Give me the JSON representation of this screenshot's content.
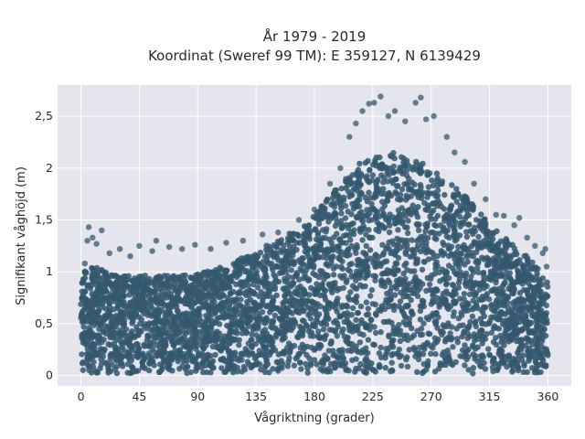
{
  "chart_data": {
    "type": "scatter",
    "title_lines": [
      "År 1979 - 2019",
      "Koordinat (Sweref 99 TM): E 359127, N 6139429"
    ],
    "xlabel": "Vågriktning (grader)",
    "ylabel": "Signifikant våghöjd (m)",
    "xlim": [
      -18,
      378
    ],
    "ylim": [
      -0.1,
      2.8
    ],
    "xticks": [
      0,
      45,
      90,
      135,
      180,
      225,
      270,
      315,
      360
    ],
    "xtick_labels": [
      "0",
      "45",
      "90",
      "135",
      "180",
      "225",
      "270",
      "315",
      "360"
    ],
    "yticks": [
      0,
      0.5,
      1,
      1.5,
      2,
      2.5
    ],
    "ytick_labels": [
      "0",
      "0,5",
      "1",
      "1,5",
      "2",
      "2,5"
    ],
    "grid": true,
    "colors": {
      "marker": "#34586f",
      "plot_bg": "#e5e5ee",
      "grid": "#ffffff"
    },
    "envelope": {
      "direction": [
        0,
        10,
        20,
        30,
        45,
        60,
        90,
        110,
        135,
        150,
        165,
        180,
        200,
        215,
        225,
        240,
        255,
        270,
        285,
        300,
        315,
        330,
        345,
        360
      ],
      "max_height": [
        1.05,
        1.05,
        1.0,
        0.98,
        0.97,
        0.96,
        0.98,
        1.05,
        1.2,
        1.3,
        1.4,
        1.55,
        1.85,
        2.05,
        2.1,
        2.15,
        2.1,
        2.0,
        1.85,
        1.7,
        1.45,
        1.3,
        1.15,
        0.9
      ]
    },
    "outliers": [
      {
        "x": 3,
        "y": 1.08
      },
      {
        "x": 5,
        "y": 1.3
      },
      {
        "x": 6,
        "y": 1.43
      },
      {
        "x": 9,
        "y": 1.33
      },
      {
        "x": 12,
        "y": 1.27
      },
      {
        "x": 16,
        "y": 1.4
      },
      {
        "x": 22,
        "y": 1.18
      },
      {
        "x": 30,
        "y": 1.22
      },
      {
        "x": 38,
        "y": 1.15
      },
      {
        "x": 45,
        "y": 1.25
      },
      {
        "x": 55,
        "y": 1.2
      },
      {
        "x": 58,
        "y": 1.3
      },
      {
        "x": 68,
        "y": 1.24
      },
      {
        "x": 78,
        "y": 1.22
      },
      {
        "x": 88,
        "y": 1.26
      },
      {
        "x": 100,
        "y": 1.22
      },
      {
        "x": 112,
        "y": 1.28
      },
      {
        "x": 125,
        "y": 1.3
      },
      {
        "x": 140,
        "y": 1.36
      },
      {
        "x": 152,
        "y": 1.38
      },
      {
        "x": 168,
        "y": 1.5
      },
      {
        "x": 180,
        "y": 1.6
      },
      {
        "x": 192,
        "y": 1.85
      },
      {
        "x": 200,
        "y": 2.0
      },
      {
        "x": 207,
        "y": 2.3
      },
      {
        "x": 212,
        "y": 2.43
      },
      {
        "x": 217,
        "y": 2.55
      },
      {
        "x": 222,
        "y": 2.62
      },
      {
        "x": 226,
        "y": 2.63
      },
      {
        "x": 231,
        "y": 2.69
      },
      {
        "x": 237,
        "y": 2.5
      },
      {
        "x": 242,
        "y": 2.55
      },
      {
        "x": 250,
        "y": 2.45
      },
      {
        "x": 258,
        "y": 2.63
      },
      {
        "x": 262,
        "y": 2.68
      },
      {
        "x": 266,
        "y": 2.47
      },
      {
        "x": 272,
        "y": 2.5
      },
      {
        "x": 282,
        "y": 2.3
      },
      {
        "x": 288,
        "y": 2.15
      },
      {
        "x": 296,
        "y": 2.06
      },
      {
        "x": 303,
        "y": 1.85
      },
      {
        "x": 312,
        "y": 1.7
      },
      {
        "x": 320,
        "y": 1.55
      },
      {
        "x": 326,
        "y": 1.54
      },
      {
        "x": 334,
        "y": 1.45
      },
      {
        "x": 338,
        "y": 1.52
      },
      {
        "x": 344,
        "y": 1.33
      },
      {
        "x": 350,
        "y": 1.25
      },
      {
        "x": 356,
        "y": 1.18
      },
      {
        "x": 358,
        "y": 1.22
      },
      {
        "x": 359,
        "y": 1.05
      }
    ]
  }
}
